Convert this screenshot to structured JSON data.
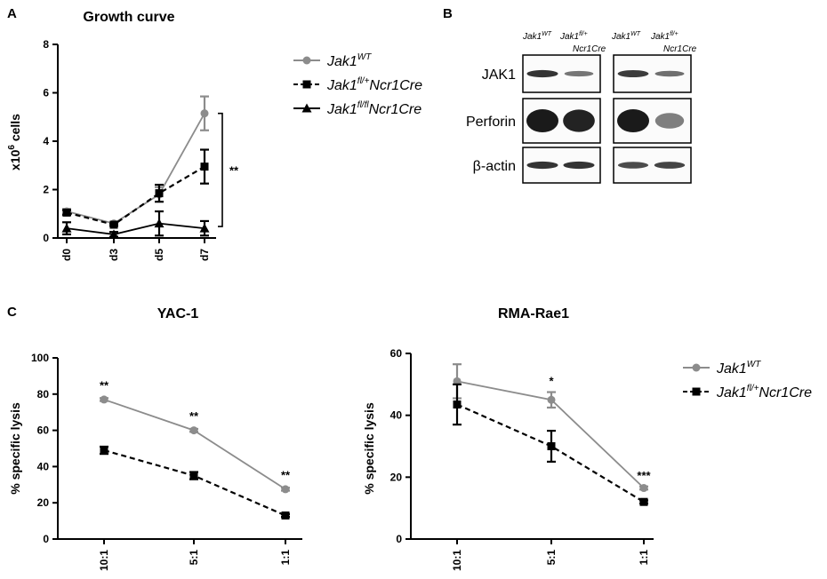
{
  "colors": {
    "wt": "#8c8c8c",
    "het": "#000000",
    "ko": "#000000",
    "band": "#1a1a1a"
  },
  "panel_labels": {
    "a": "A",
    "b": "B",
    "c": "C"
  },
  "chart_data": [
    {
      "id": "growth",
      "type": "line",
      "title": "Growth curve",
      "xlabel": "",
      "ylabel": "x10",
      "ylabel_sup": "6",
      "ylabel_suffix": " cells",
      "categories": [
        "d0",
        "d3",
        "d5",
        "d7"
      ],
      "ylim": [
        0,
        8
      ],
      "yticks": [
        0,
        2,
        4,
        6,
        8
      ],
      "series": [
        {
          "key": "wt",
          "name": "Jak1",
          "sup": "WT",
          "suffix": "",
          "marker": "circle",
          "dash": false,
          "values": [
            1.1,
            0.6,
            1.8,
            5.15
          ],
          "errors": [
            0.1,
            0.05,
            0.3,
            0.7
          ]
        },
        {
          "key": "het",
          "name": "Jak1",
          "sup": "fl/+",
          "suffix": "Ncr1Cre",
          "marker": "square",
          "dash": true,
          "values": [
            1.05,
            0.55,
            1.85,
            2.95
          ],
          "errors": [
            0.1,
            0.05,
            0.35,
            0.7
          ]
        },
        {
          "key": "ko",
          "name": "Jak1",
          "sup": "fl/fl",
          "suffix": "Ncr1Cre",
          "marker": "triangle",
          "dash": false,
          "values": [
            0.4,
            0.15,
            0.6,
            0.4
          ],
          "errors": [
            0.25,
            0.1,
            0.5,
            0.3
          ]
        }
      ],
      "annotations": [
        {
          "text": "**",
          "bracket": "d7"
        }
      ]
    },
    {
      "id": "yac1",
      "type": "line",
      "title": "YAC-1",
      "xlabel": "",
      "ylabel": "% specific lysis",
      "categories": [
        "10:1",
        "5:1",
        "1:1"
      ],
      "ylim": [
        0,
        100
      ],
      "yticks": [
        0,
        20,
        40,
        60,
        80,
        100
      ],
      "series": [
        {
          "key": "wt",
          "name": "Jak1",
          "sup": "WT",
          "suffix": "",
          "marker": "circle",
          "dash": false,
          "values": [
            77,
            60,
            27.5
          ],
          "errors": [
            0.8,
            0.8,
            0.8
          ]
        },
        {
          "key": "het",
          "name": "Jak1",
          "sup": "fl/+",
          "suffix": "Ncr1Cre",
          "marker": "square",
          "dash": true,
          "values": [
            49,
            35,
            13
          ],
          "errors": [
            2,
            2,
            0.8
          ]
        }
      ],
      "annotations": [
        "**",
        "**",
        "**"
      ]
    },
    {
      "id": "rma",
      "type": "line",
      "title": "RMA-Rae1",
      "xlabel": "",
      "ylabel": "% specific lysis",
      "categories": [
        "10:1",
        "5:1",
        "1:1"
      ],
      "ylim": [
        0,
        60
      ],
      "yticks": [
        0,
        20,
        40,
        60
      ],
      "series": [
        {
          "key": "wt",
          "name": "Jak1",
          "sup": "WT",
          "suffix": "",
          "marker": "circle",
          "dash": false,
          "values": [
            51,
            45,
            16.5
          ],
          "errors": [
            5.5,
            2.5,
            0.5
          ]
        },
        {
          "key": "het",
          "name": "Jak1",
          "sup": "fl/+",
          "suffix": "Ncr1Cre",
          "marker": "square",
          "dash": true,
          "values": [
            43.5,
            30,
            12
          ],
          "errors": [
            6.5,
            5,
            0.5
          ]
        }
      ],
      "annotations": [
        "",
        "*",
        "***"
      ]
    }
  ],
  "blot": {
    "lanes": [
      {
        "name": "Jak1",
        "sup": "WT",
        "line2": ""
      },
      {
        "name": "Jak1",
        "sup": "fl/+",
        "line2": "Ncr1Cre"
      }
    ],
    "rows": [
      {
        "label": "JAK1",
        "intensity": [
          0.85,
          0.45,
          0.8,
          0.5
        ]
      },
      {
        "label": "Perforin",
        "intensity": [
          1.0,
          0.95,
          1.0,
          0.4
        ]
      },
      {
        "label": "β-actin",
        "intensity": [
          0.85,
          0.85,
          0.7,
          0.75
        ]
      }
    ]
  }
}
